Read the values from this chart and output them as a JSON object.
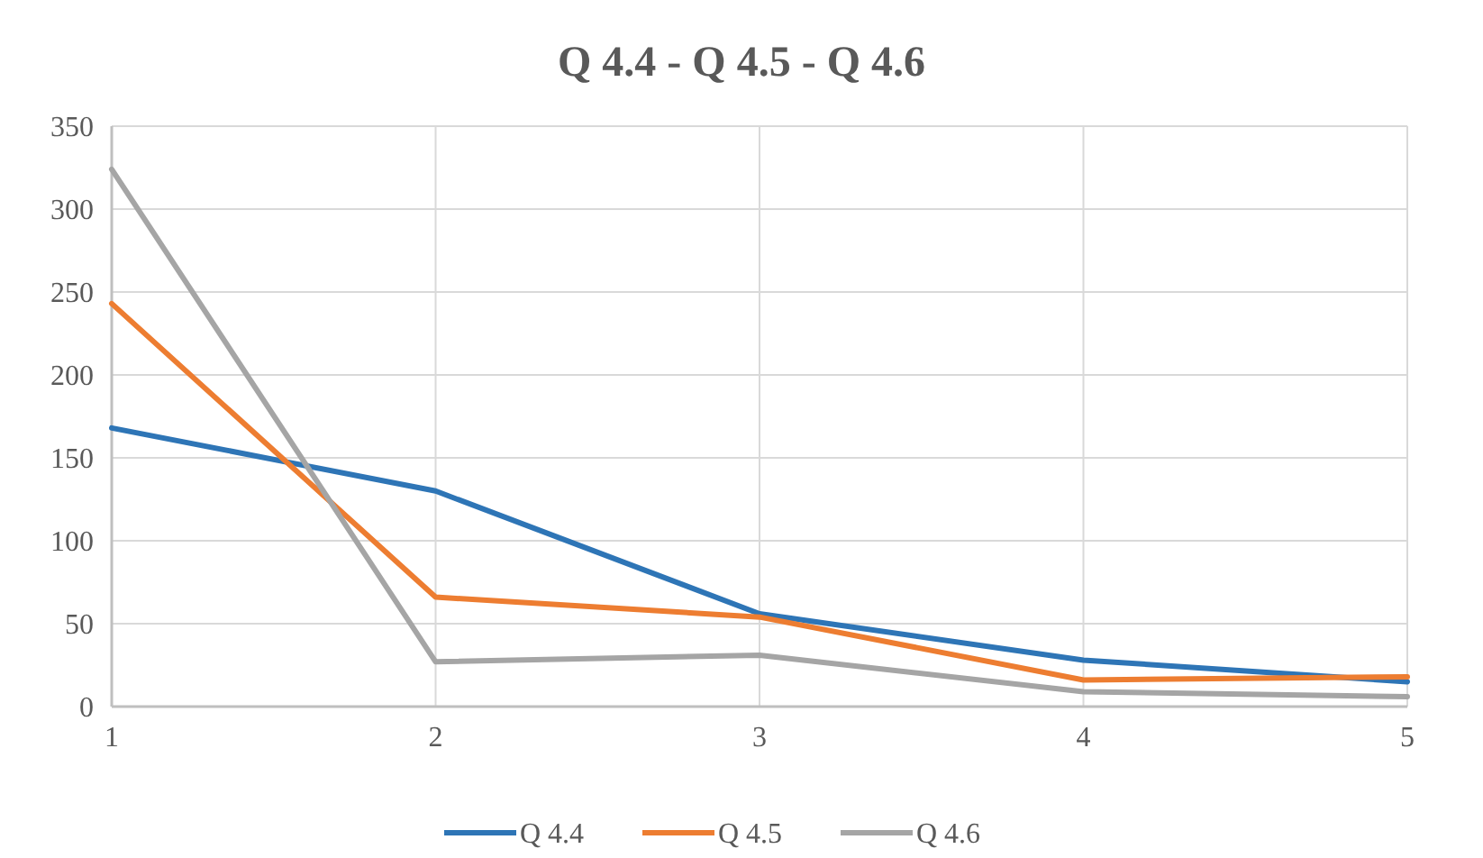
{
  "chart_data": {
    "type": "line",
    "title": "Q 4.4 - Q 4.5 - Q 4.6",
    "x": [
      1,
      2,
      3,
      4,
      5
    ],
    "xlim": [
      1,
      5
    ],
    "xticks": [
      1,
      2,
      3,
      4,
      5
    ],
    "ylim": [
      0,
      350
    ],
    "yticks": [
      0,
      50,
      100,
      150,
      200,
      250,
      300,
      350
    ],
    "grid": true,
    "legend": "bottom",
    "marker": "none",
    "line_style": "solid",
    "series": [
      {
        "name": "Q 4.4",
        "color": "#2e75b6",
        "values": [
          168,
          130,
          56,
          28,
          15
        ]
      },
      {
        "name": "Q 4.5",
        "color": "#ed7d31",
        "values": [
          243,
          66,
          54,
          16,
          18
        ]
      },
      {
        "name": "Q 4.6",
        "color": "#a5a5a5",
        "values": [
          324,
          27,
          31,
          9,
          6
        ]
      }
    ]
  }
}
